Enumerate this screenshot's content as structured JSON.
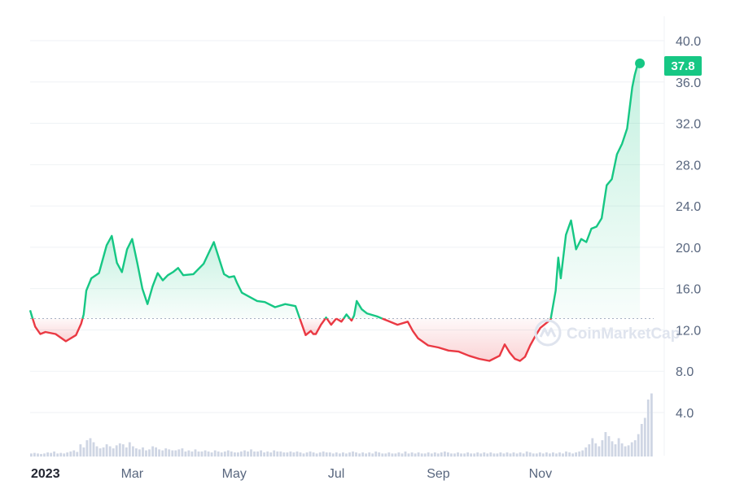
{
  "chart_data": {
    "type": "area",
    "y_ticks": [
      "4.0",
      "8.0",
      "12.0",
      "16.0",
      "20.0",
      "24.0",
      "28.0",
      "32.0",
      "36.0",
      "40.0"
    ],
    "x_ticks": [
      {
        "label": "2023",
        "month_index": 0.3,
        "bold": true
      },
      {
        "label": "Mar",
        "month_index": 2.0
      },
      {
        "label": "May",
        "month_index": 4.0
      },
      {
        "label": "Jul",
        "month_index": 6.0
      },
      {
        "label": "Sep",
        "month_index": 8.0
      },
      {
        "label": "Nov",
        "month_index": 10.0
      }
    ],
    "ylim": [
      0,
      41.5
    ],
    "xlim_months": [
      0,
      12.2
    ],
    "baseline": 13.1,
    "last_price": "37.8",
    "up_color": "#16c784",
    "down_color": "#ea3943",
    "series": [
      {
        "x": [
          0.0,
          0.1,
          0.2,
          0.3,
          0.5,
          0.7,
          0.9,
          1.0,
          1.05,
          1.1,
          1.2,
          1.35,
          1.5,
          1.6,
          1.7,
          1.8,
          1.9,
          2.0,
          2.1,
          2.2,
          2.3,
          2.4,
          2.5,
          2.6,
          2.7,
          2.8,
          2.9,
          3.0,
          3.2,
          3.4,
          3.6,
          3.8,
          3.9,
          4.0,
          4.05,
          4.15,
          4.3,
          4.45,
          4.6,
          4.8,
          5.0,
          5.2,
          5.4,
          5.5,
          5.55,
          5.6,
          5.7,
          5.8,
          5.9,
          6.0,
          6.1,
          6.2,
          6.3,
          6.35,
          6.4,
          6.5,
          6.6,
          6.8,
          7.0,
          7.2,
          7.4,
          7.5,
          7.6,
          7.8,
          8.0,
          8.2,
          8.4,
          8.6,
          8.8,
          9.0,
          9.2,
          9.3,
          9.4,
          9.5,
          9.6,
          9.7,
          9.8,
          9.9,
          10.0,
          10.1,
          10.2,
          10.3,
          10.35,
          10.4,
          10.5,
          10.6,
          10.7,
          10.8,
          10.9,
          11.0,
          11.1,
          11.2,
          11.3,
          11.4,
          11.5,
          11.6,
          11.7,
          11.8,
          11.85,
          11.9,
          11.95
        ],
        "y": [
          13.9,
          12.3,
          11.6,
          11.8,
          11.6,
          10.9,
          11.5,
          12.6,
          13.5,
          15.8,
          17.0,
          17.5,
          20.2,
          21.1,
          18.5,
          17.6,
          19.8,
          20.8,
          18.5,
          16.0,
          14.5,
          16.2,
          17.5,
          16.8,
          17.3,
          17.6,
          18.0,
          17.3,
          17.4,
          18.4,
          20.5,
          17.4,
          17.1,
          17.2,
          16.6,
          15.6,
          15.2,
          14.8,
          14.7,
          14.2,
          14.5,
          14.3,
          11.5,
          11.9,
          11.6,
          11.6,
          12.5,
          13.2,
          12.5,
          13.1,
          12.8,
          13.5,
          12.9,
          13.4,
          14.8,
          14.0,
          13.6,
          13.3,
          12.9,
          12.5,
          12.8,
          11.9,
          11.2,
          10.5,
          10.3,
          10.0,
          9.9,
          9.5,
          9.2,
          9.0,
          9.5,
          10.6,
          9.8,
          9.2,
          9.0,
          9.4,
          10.5,
          11.4,
          12.2,
          12.6,
          13.0,
          15.8,
          19.0,
          17.0,
          21.2,
          22.6,
          19.8,
          20.8,
          20.5,
          21.8,
          22.0,
          22.8,
          26.0,
          26.6,
          29.0,
          30.0,
          31.5,
          35.5,
          36.7,
          37.6,
          37.8
        ]
      }
    ],
    "volume": [
      0.3,
      0.35,
      0.3,
      0.25,
      0.3,
      0.4,
      0.35,
      0.5,
      0.3,
      0.35,
      0.3,
      0.4,
      0.5,
      0.6,
      0.45,
      1.2,
      0.9,
      1.6,
      1.8,
      1.4,
      1.0,
      0.8,
      0.9,
      1.2,
      1.0,
      0.8,
      1.1,
      1.3,
      1.2,
      0.9,
      1.4,
      1.0,
      0.8,
      0.7,
      0.9,
      0.6,
      0.7,
      1.0,
      0.9,
      0.7,
      0.6,
      0.8,
      0.7,
      0.6,
      0.6,
      0.7,
      0.8,
      0.5,
      0.6,
      0.5,
      0.7,
      0.5,
      0.5,
      0.6,
      0.5,
      0.4,
      0.6,
      0.5,
      0.4,
      0.5,
      0.6,
      0.5,
      0.4,
      0.4,
      0.5,
      0.6,
      0.5,
      0.7,
      0.5,
      0.5,
      0.6,
      0.4,
      0.5,
      0.4,
      0.6,
      0.5,
      0.5,
      0.4,
      0.4,
      0.5,
      0.4,
      0.5,
      0.4,
      0.3,
      0.4,
      0.5,
      0.4,
      0.3,
      0.4,
      0.5,
      0.4,
      0.4,
      0.3,
      0.4,
      0.3,
      0.4,
      0.3,
      0.4,
      0.5,
      0.4,
      0.3,
      0.4,
      0.3,
      0.4,
      0.3,
      0.5,
      0.4,
      0.3,
      0.3,
      0.4,
      0.3,
      0.3,
      0.4,
      0.3,
      0.5,
      0.3,
      0.4,
      0.3,
      0.4,
      0.3,
      0.3,
      0.4,
      0.3,
      0.4,
      0.3,
      0.4,
      0.5,
      0.4,
      0.3,
      0.3,
      0.4,
      0.3,
      0.3,
      0.4,
      0.3,
      0.3,
      0.4,
      0.3,
      0.4,
      0.3,
      0.4,
      0.3,
      0.3,
      0.4,
      0.3,
      0.4,
      0.3,
      0.4,
      0.3,
      0.4,
      0.3,
      0.5,
      0.4,
      0.3,
      0.3,
      0.4,
      0.3,
      0.4,
      0.3,
      0.4,
      0.3,
      0.4,
      0.3,
      0.5,
      0.4,
      0.3,
      0.4,
      0.5,
      0.6,
      0.9,
      1.2,
      1.8,
      1.3,
      1.0,
      1.6,
      2.4,
      2.0,
      1.5,
      1.2,
      1.8,
      1.3,
      1.0,
      1.1,
      1.4,
      1.6,
      2.2,
      3.2,
      3.8,
      5.6,
      6.2
    ]
  },
  "watermark": {
    "text": "CoinMarketCap"
  },
  "colors": {
    "grid": "#eff2f5",
    "axis_text": "#58667e",
    "baseline": "#a6b0c3",
    "volume": "#cfd6e4"
  }
}
